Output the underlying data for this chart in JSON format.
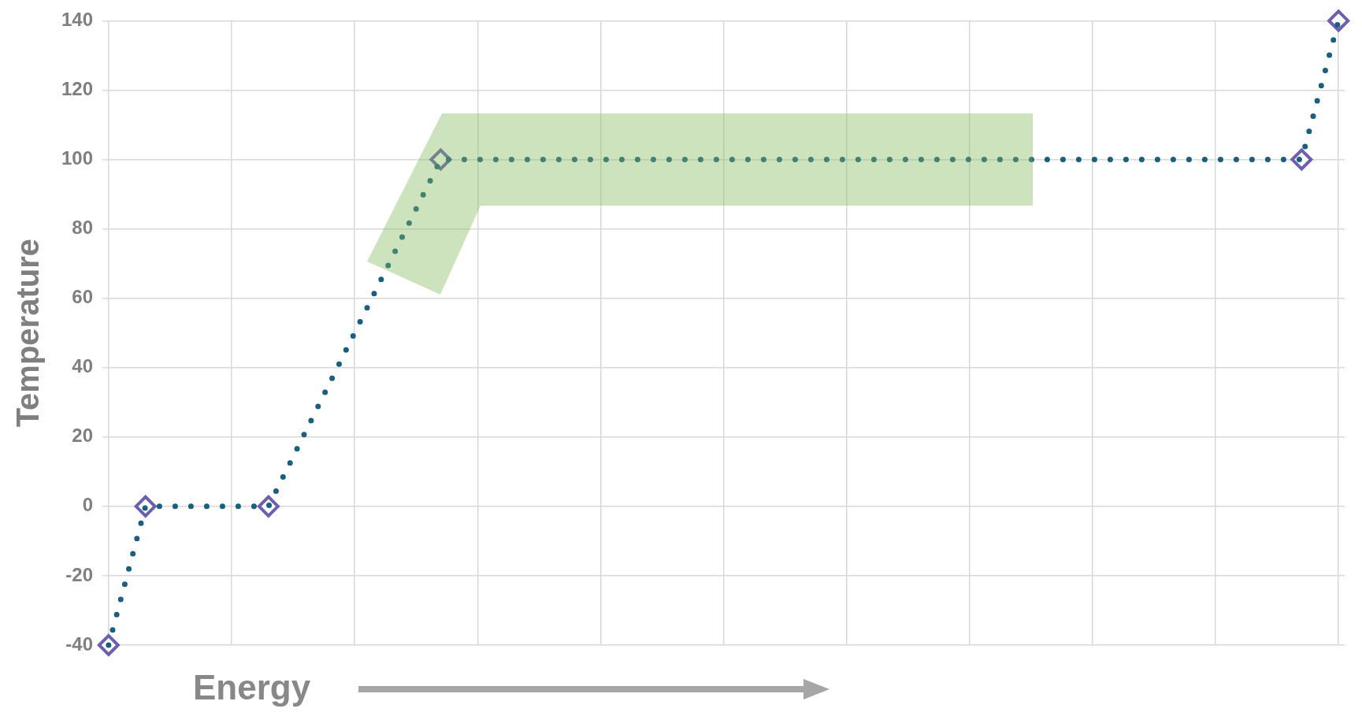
{
  "chart_data": {
    "type": "line",
    "xlabel": "Energy",
    "ylabel": "Temperature",
    "categories": [
      null,
      null,
      null,
      null,
      null,
      null,
      null,
      null,
      null,
      null,
      null,
      null,
      null,
      null,
      null,
      null,
      null,
      null,
      null,
      null,
      null,
      null,
      null,
      null,
      null,
      null,
      null,
      null,
      null,
      null,
      null,
      null,
      null,
      null,
      null,
      null,
      null,
      null,
      null,
      null,
      null,
      null,
      null,
      null,
      null,
      null,
      null,
      null,
      null,
      null,
      null,
      null,
      null,
      null,
      null,
      null,
      null,
      null,
      null,
      null,
      null,
      null,
      null,
      null,
      null,
      null,
      null,
      null,
      null,
      null,
      null,
      null,
      null,
      null,
      null,
      null,
      null,
      null,
      null,
      null,
      null,
      null,
      null,
      null,
      null,
      null,
      null,
      null,
      null,
      null,
      null,
      null,
      null,
      null,
      null,
      null,
      null,
      null,
      null,
      null,
      null
    ],
    "series": [
      {
        "color": "#1a5e80",
        "values": [
          -40,
          null,
          null,
          0,
          null,
          null,
          null,
          null,
          null,
          null,
          null,
          null,
          null,
          0,
          null,
          null,
          null,
          null,
          null,
          null,
          null,
          null,
          null,
          null,
          null,
          null,
          null,
          100,
          null,
          null,
          null,
          null,
          null,
          null,
          null,
          null,
          null,
          null,
          null,
          null,
          null,
          null,
          null,
          null,
          null,
          null,
          null,
          null,
          null,
          null,
          null,
          null,
          null,
          null,
          null,
          null,
          null,
          null,
          null,
          null,
          null,
          null,
          null,
          null,
          null,
          null,
          null,
          null,
          null,
          null,
          null,
          null,
          null,
          null,
          null,
          null,
          null,
          null,
          null,
          null,
          null,
          null,
          null,
          null,
          null,
          null,
          null,
          null,
          null,
          null,
          null,
          null,
          null,
          null,
          null,
          null,
          null,
          100,
          null,
          null,
          140
        ]
      }
    ],
    "ylim": [
      -40,
      140
    ],
    "yticks": [
      -40,
      -20,
      0,
      20,
      40,
      60,
      80,
      100,
      120,
      140
    ],
    "grid": true,
    "legend": false,
    "tick_labels": "y",
    "marker": "diamond",
    "line_style": "dotted"
  }
}
